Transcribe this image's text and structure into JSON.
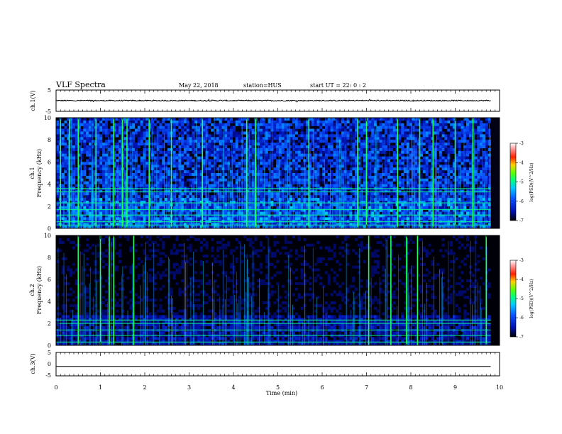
{
  "header": {
    "title": "VLF Spectra",
    "date": "May 22, 2018",
    "station": "station=HUS",
    "start": "start  UT  =   22: 0  : 2"
  },
  "chart_data": [
    {
      "name": "ch1-waveform",
      "type": "line",
      "ylabel": "ch.1(V)",
      "ylim": [
        -5,
        5
      ],
      "yticks": [
        "5",
        "-5"
      ],
      "baseline_value": 0.05,
      "noise_amplitude": 0.25
    },
    {
      "name": "ch1-spectrogram",
      "type": "heatmap",
      "ylabel": "Frequency (kHz)",
      "channel_label": "ch.1",
      "ylim": [
        0,
        10
      ],
      "yticks": [
        "0",
        "2",
        "4",
        "6",
        "8",
        "10"
      ],
      "colorbar": {
        "label": "log(PSD)(V^2/Hz)",
        "min": -7,
        "max": -3,
        "ticks": [
          "-3",
          "-4",
          "-5",
          "-6",
          "-7"
        ]
      },
      "bands_khz": [
        0.3,
        0.6,
        1.2,
        1.7,
        2.3,
        3.3,
        3.6
      ],
      "background_level": 0.35,
      "strong_sferic_times_min": [
        0.1,
        0.3,
        0.5,
        0.9,
        1.3,
        1.5,
        1.6,
        2.1,
        2.6,
        3.3,
        4.3,
        4.5,
        5.7,
        6.8,
        7.0,
        7.7,
        8.2,
        8.5,
        9.0,
        9.4
      ]
    },
    {
      "name": "ch2-spectrogram",
      "type": "heatmap",
      "ylabel": "Frequency (kHz)",
      "channel_label": "ch.2",
      "ylim": [
        0,
        10
      ],
      "yticks": [
        "0",
        "2",
        "4",
        "6",
        "8",
        "10"
      ],
      "colorbar": {
        "label": "log(PSD)(V^2/Hz)",
        "min": -7,
        "max": -3,
        "ticks": [
          "-3",
          "-4",
          "-5",
          "-6",
          "-7"
        ]
      },
      "bands_khz": [
        0.3,
        0.9,
        1.4,
        2.0,
        2.3
      ],
      "background_level": 0.08,
      "strong_sferic_times_min": [
        0.5,
        1.0,
        1.2,
        1.3,
        1.75,
        7.05,
        7.55,
        7.9,
        8.15,
        9.7
      ]
    },
    {
      "name": "ch3-waveform",
      "type": "line",
      "ylabel": "ch.3(V)",
      "ylim": [
        -5,
        5
      ],
      "yticks": [
        "5",
        "0",
        "-5"
      ],
      "baseline_value": -1.0,
      "noise_amplitude": 0
    }
  ],
  "xaxis": {
    "label": "Time (min)",
    "ticks": [
      "0",
      "1",
      "2",
      "3",
      "4",
      "5",
      "6",
      "7",
      "8",
      "9",
      "10"
    ],
    "xlim": [
      0,
      10
    ],
    "data_end_min": 9.8
  }
}
